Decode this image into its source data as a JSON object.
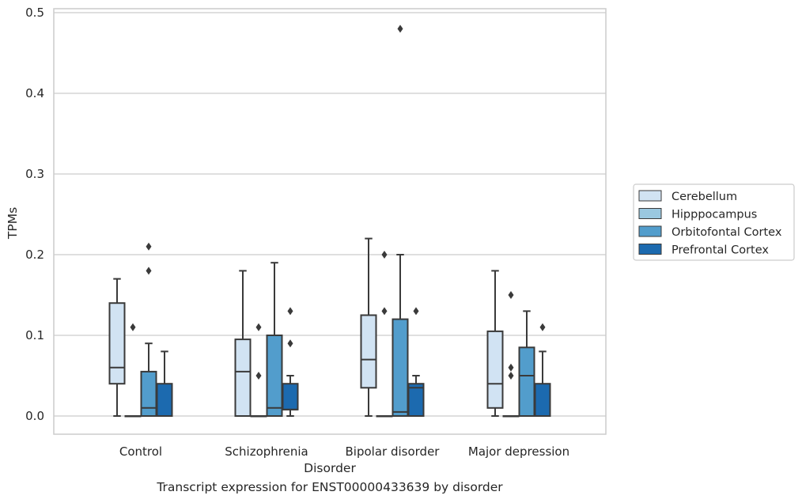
{
  "chart_data": {
    "type": "box",
    "caption": "Transcript expression for ENST00000433639 by disorder",
    "xlabel": "Disorder",
    "ylabel": "TPMs",
    "ylim": [
      -0.023,
      0.505
    ],
    "yticks": [
      0.0,
      0.1,
      0.2,
      0.3,
      0.4,
      0.5
    ],
    "ytick_labels": [
      "0.0",
      "0.1",
      "0.2",
      "0.3",
      "0.4",
      "0.5"
    ],
    "grid": "horizontal",
    "legend_position": "right",
    "categories": [
      "Control",
      "Schizophrenia",
      "Bipolar disorder",
      "Major depression"
    ],
    "series": [
      {
        "name": "Cerebellum",
        "color": "#d1e3f3",
        "boxes": [
          {
            "min": 0.0,
            "q1": 0.04,
            "median": 0.06,
            "q3": 0.14,
            "max": 0.17,
            "outliers": []
          },
          {
            "min": 0.0,
            "q1": 0.0,
            "median": 0.055,
            "q3": 0.095,
            "max": 0.18,
            "outliers": []
          },
          {
            "min": 0.0,
            "q1": 0.035,
            "median": 0.07,
            "q3": 0.125,
            "max": 0.22,
            "outliers": []
          },
          {
            "min": 0.0,
            "q1": 0.01,
            "median": 0.04,
            "q3": 0.105,
            "max": 0.18,
            "outliers": []
          }
        ]
      },
      {
        "name": "Hipppocampus",
        "color": "#9ac8e0",
        "boxes": [
          {
            "min": 0.0,
            "q1": 0.0,
            "median": 0.0,
            "q3": 0.0,
            "max": 0.0,
            "outliers": [
              0.11
            ]
          },
          {
            "min": 0.0,
            "q1": 0.0,
            "median": 0.0,
            "q3": 0.0,
            "max": 0.0,
            "outliers": [
              0.11,
              0.05
            ]
          },
          {
            "min": 0.0,
            "q1": 0.0,
            "median": 0.0,
            "q3": 0.0,
            "max": 0.0,
            "outliers": [
              0.2,
              0.13
            ]
          },
          {
            "min": 0.0,
            "q1": 0.0,
            "median": 0.0,
            "q3": 0.0,
            "max": 0.0,
            "outliers": [
              0.15,
              0.06,
              0.05
            ]
          }
        ]
      },
      {
        "name": "Orbitofontal Cortex",
        "color": "#529dcc",
        "boxes": [
          {
            "min": 0.0,
            "q1": 0.0,
            "median": 0.01,
            "q3": 0.055,
            "max": 0.09,
            "outliers": [
              0.21,
              0.18
            ]
          },
          {
            "min": 0.0,
            "q1": 0.0,
            "median": 0.01,
            "q3": 0.1,
            "max": 0.19,
            "outliers": []
          },
          {
            "min": 0.0,
            "q1": 0.0,
            "median": 0.005,
            "q3": 0.12,
            "max": 0.2,
            "outliers": [
              0.48
            ]
          },
          {
            "min": 0.0,
            "q1": 0.0,
            "median": 0.05,
            "q3": 0.085,
            "max": 0.13,
            "outliers": []
          }
        ]
      },
      {
        "name": "Prefrontal Cortex",
        "color": "#1c6aaf",
        "boxes": [
          {
            "min": 0.0,
            "q1": 0.0,
            "median": 0.0,
            "q3": 0.04,
            "max": 0.08,
            "outliers": []
          },
          {
            "min": 0.0,
            "q1": 0.008,
            "median": 0.008,
            "q3": 0.04,
            "max": 0.05,
            "outliers": [
              0.13,
              0.09
            ]
          },
          {
            "min": 0.0,
            "q1": 0.0,
            "median": 0.035,
            "q3": 0.04,
            "max": 0.05,
            "outliers": [
              0.13
            ]
          },
          {
            "min": 0.0,
            "q1": 0.0,
            "median": 0.0,
            "q3": 0.04,
            "max": 0.08,
            "outliers": [
              0.11
            ]
          }
        ]
      }
    ]
  }
}
